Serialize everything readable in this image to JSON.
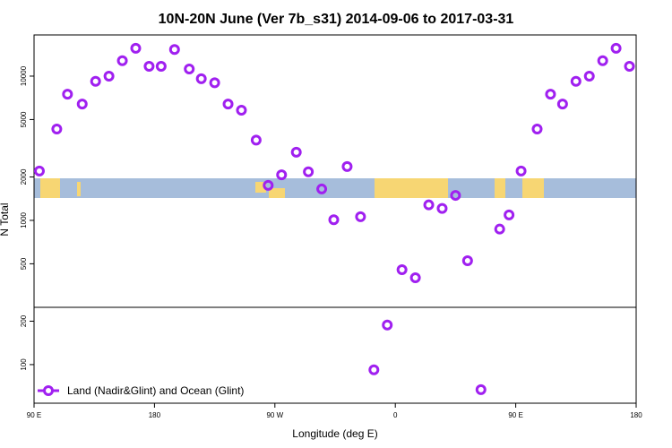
{
  "chart_data": {
    "type": "scatter",
    "title": "10N-20N June (Ver 7b_s31)   2014-09-06 to 2017-03-31",
    "x_label": "Longitude (deg E)",
    "y_label": "N Total",
    "yscale": "log",
    "xlim": [
      90,
      540
    ],
    "ylim": [
      54,
      19300
    ],
    "xticks": [
      {
        "value": 90,
        "label": "90 E"
      },
      180,
      {
        "value": 270,
        "label": "90 W"
      },
      {
        "value": 360,
        "label": "0"
      },
      {
        "value": 450,
        "label": "90 E"
      },
      {
        "value": 540,
        "label": "180"
      }
    ],
    "yticks": [
      100,
      200,
      500,
      1000,
      2000,
      5000,
      10000
    ],
    "legend": "bottom-left",
    "series": [
      {
        "name": "Land (Nadir&Glint) and Ocean (Glint)",
        "color": "#a020f0",
        "x": [
          94,
          107,
          115,
          126,
          136,
          146,
          156,
          166,
          176,
          185,
          195,
          206,
          215,
          225,
          235,
          245,
          256,
          265,
          275,
          286,
          295,
          305,
          314,
          324,
          334,
          344,
          354,
          365,
          375,
          385,
          395,
          405,
          414,
          424,
          438,
          445,
          454,
          466,
          476,
          485,
          495,
          505,
          515,
          525,
          535
        ],
        "values": [
          2200,
          4300,
          7500,
          6400,
          9200,
          10000,
          12800,
          15600,
          11700,
          11700,
          15300,
          11200,
          9600,
          9000,
          6400,
          5800,
          3600,
          1750,
          2070,
          2970,
          2170,
          1650,
          1010,
          2360,
          1060,
          92,
          188,
          455,
          400,
          1280,
          1210,
          1490,
          525,
          67,
          870,
          1090,
          2200,
          4300,
          7500,
          6400,
          9200,
          10000,
          12800,
          15600,
          11700
        ]
      }
    ]
  }
}
